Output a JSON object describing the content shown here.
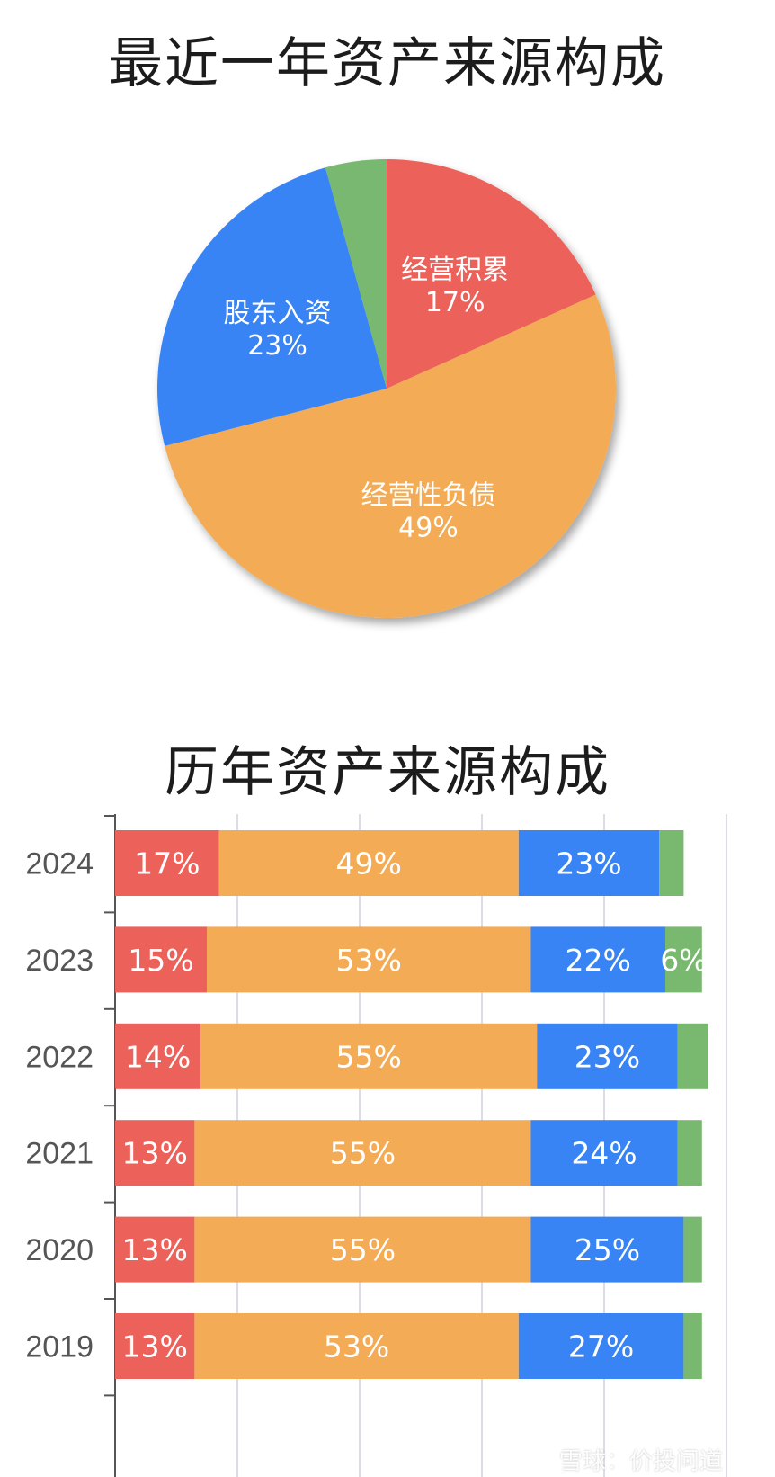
{
  "titles": {
    "pie": "最近一年资产来源构成",
    "bar": "历年资产来源构成"
  },
  "watermark": "雪球：价投问道",
  "colors": {
    "经营积累": "#ec625a",
    "经营性负债": "#f3ac55",
    "股东入资": "#3884f4",
    "other": "#79b86f"
  },
  "chart_data": [
    {
      "type": "pie",
      "title": "最近一年资产来源构成",
      "slices": [
        {
          "name": "经营积累",
          "value": 17,
          "label_name": "经营积累",
          "label_pct": "17%"
        },
        {
          "name": "经营性负债",
          "value": 49,
          "label_name": "经营性负债",
          "label_pct": "49%"
        },
        {
          "name": "股东入资",
          "value": 23,
          "label_name": "股东入资",
          "label_pct": "23%"
        },
        {
          "name": "other",
          "value": 4,
          "label_name": "",
          "label_pct": ""
        }
      ]
    },
    {
      "type": "bar",
      "orientation": "horizontal",
      "stacked": true,
      "title": "历年资产来源构成",
      "categories": [
        "2024",
        "2023",
        "2022",
        "2021",
        "2020",
        "2019"
      ],
      "series": [
        {
          "key": "经营积累",
          "values": [
            17,
            15,
            14,
            13,
            13,
            13
          ],
          "labels": [
            "17%",
            "15%",
            "14%",
            "13%",
            "13%",
            "13%"
          ]
        },
        {
          "key": "经营性负债",
          "values": [
            49,
            53,
            55,
            55,
            55,
            53
          ],
          "labels": [
            "49%",
            "53%",
            "55%",
            "55%",
            "55%",
            "53%"
          ]
        },
        {
          "key": "股东入资",
          "values": [
            23,
            22,
            23,
            24,
            25,
            27
          ],
          "labels": [
            "23%",
            "22%",
            "23%",
            "24%",
            "25%",
            "27%"
          ]
        },
        {
          "key": "other",
          "values": [
            4,
            6,
            5,
            4,
            3,
            3
          ],
          "labels": [
            "",
            "6%",
            "",
            "",
            "",
            ""
          ]
        }
      ],
      "xlim": [
        0,
        100
      ],
      "grid": true
    }
  ]
}
